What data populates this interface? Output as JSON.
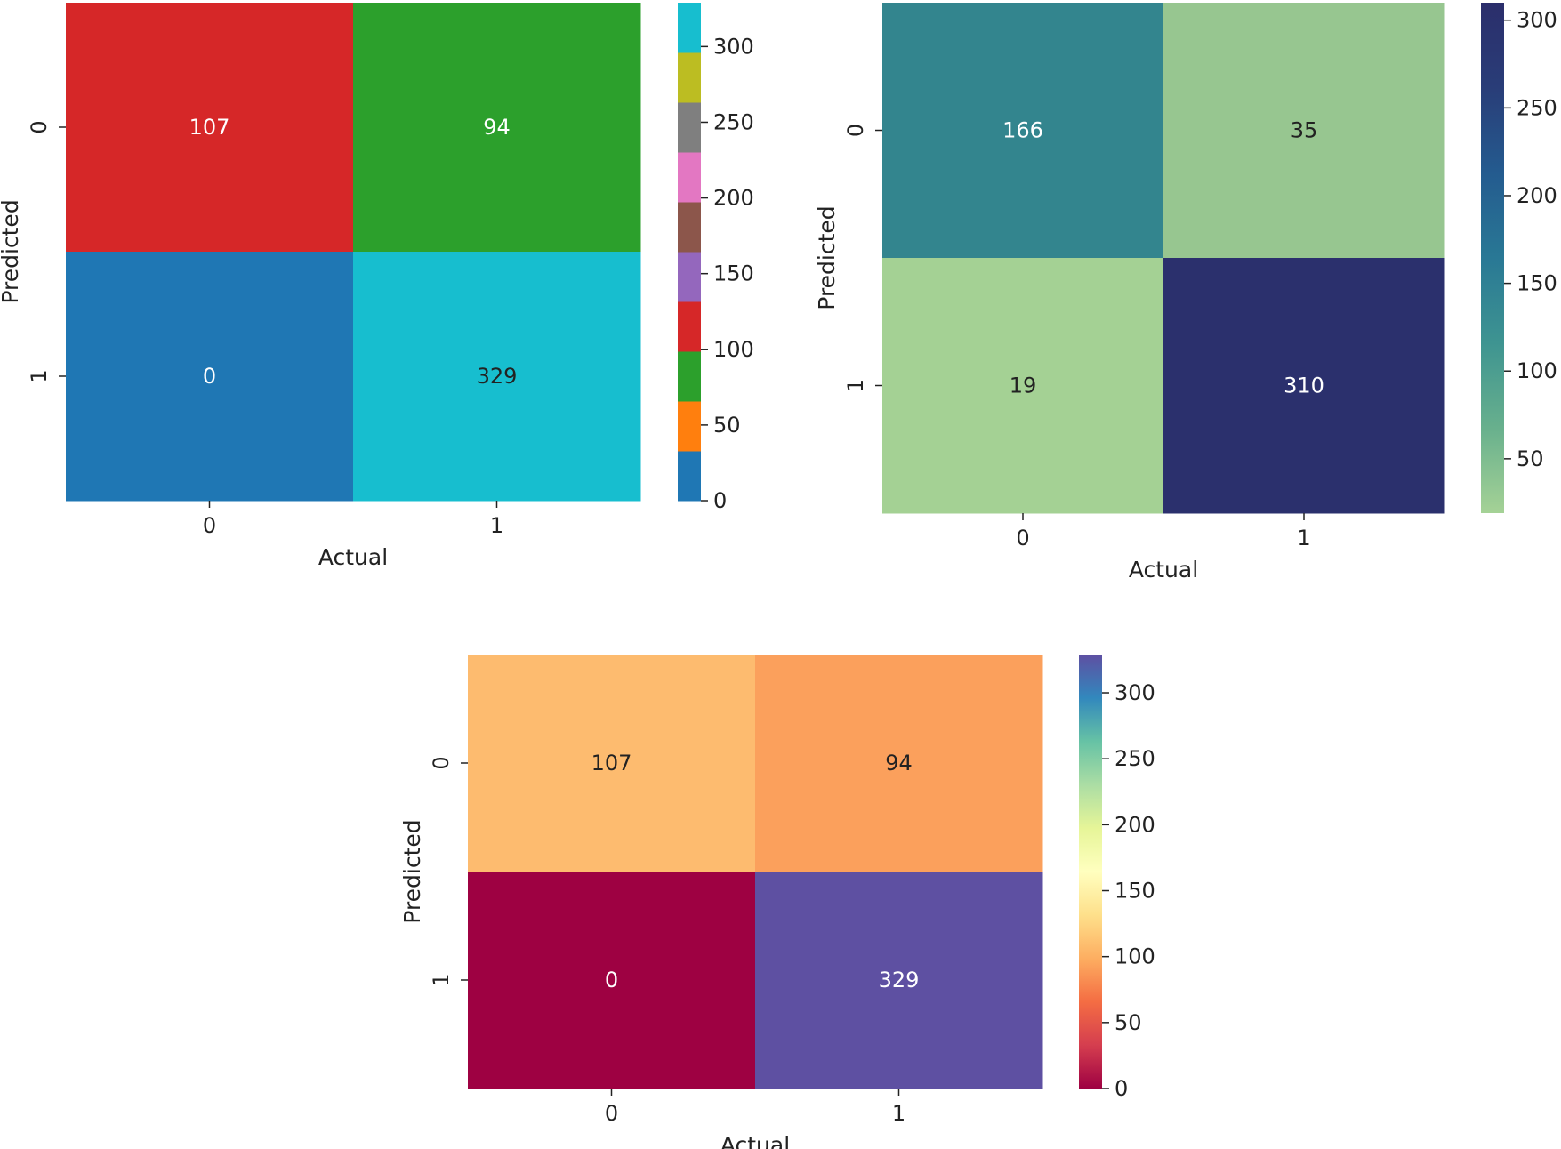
{
  "chart_data": [
    {
      "type": "heatmap",
      "title": "",
      "xlabel": "Actual",
      "ylabel": "Predicted",
      "x_categories": [
        "0",
        "1"
      ],
      "y_categories": [
        "0",
        "1"
      ],
      "values": [
        [
          107,
          94
        ],
        [
          0,
          329
        ]
      ],
      "colormap": "tab10 (qualitative)",
      "cell_colors": [
        [
          "#d62728",
          "#2ca02c"
        ],
        [
          "#1f77b4",
          "#17becf"
        ]
      ],
      "colorbar": {
        "range": [
          0,
          329
        ],
        "ticks": [
          0,
          50,
          100,
          150,
          200,
          250,
          300
        ],
        "segments": [
          "#1f77b4",
          "#ff7f0e",
          "#2ca02c",
          "#d62728",
          "#9467bd",
          "#8c564b",
          "#e377c2",
          "#7f7f7f",
          "#bcbd22",
          "#17becf"
        ]
      },
      "text_colors": [
        [
          "#ffffff",
          "#ffffff"
        ],
        [
          "#ffffff",
          "#222222"
        ]
      ]
    },
    {
      "type": "heatmap",
      "title": "",
      "xlabel": "Actual",
      "ylabel": "Predicted",
      "x_categories": [
        "0",
        "1"
      ],
      "y_categories": [
        "0",
        "1"
      ],
      "values": [
        [
          166,
          35
        ],
        [
          19,
          310
        ]
      ],
      "colormap": "crest",
      "cell_colors": [
        [
          "#33858e",
          "#97c690"
        ],
        [
          "#a4d194",
          "#2b306d"
        ]
      ],
      "colorbar": {
        "range": [
          19,
          310
        ],
        "ticks": [
          50,
          100,
          150,
          200,
          250,
          300
        ],
        "gradient": [
          "#a5d296",
          "#68b08d",
          "#3e9491",
          "#297895",
          "#245b8f",
          "#293d78",
          "#2b2e6b"
        ]
      },
      "text_colors": [
        [
          "#ffffff",
          "#222222"
        ],
        [
          "#222222",
          "#ffffff"
        ]
      ]
    },
    {
      "type": "heatmap",
      "title": "",
      "xlabel": "Actual",
      "ylabel": "Predicted",
      "x_categories": [
        "0",
        "1"
      ],
      "y_categories": [
        "0",
        "1"
      ],
      "values": [
        [
          107,
          94
        ],
        [
          0,
          329
        ]
      ],
      "colormap": "Spectral",
      "cell_colors": [
        [
          "#fdbb6f",
          "#fba05c"
        ],
        [
          "#9e0142",
          "#5e50a2"
        ]
      ],
      "colorbar": {
        "range": [
          0,
          329
        ],
        "ticks": [
          0,
          50,
          100,
          150,
          200,
          250,
          300
        ],
        "gradient": [
          "#9e0142",
          "#d53e4f",
          "#f46d43",
          "#fdae61",
          "#fee08b",
          "#ffffbf",
          "#e6f598",
          "#abdda4",
          "#66c2a5",
          "#3288bd",
          "#5e4fa2"
        ]
      },
      "text_colors": [
        [
          "#222222",
          "#222222"
        ],
        [
          "#ffffff",
          "#ffffff"
        ]
      ]
    }
  ]
}
